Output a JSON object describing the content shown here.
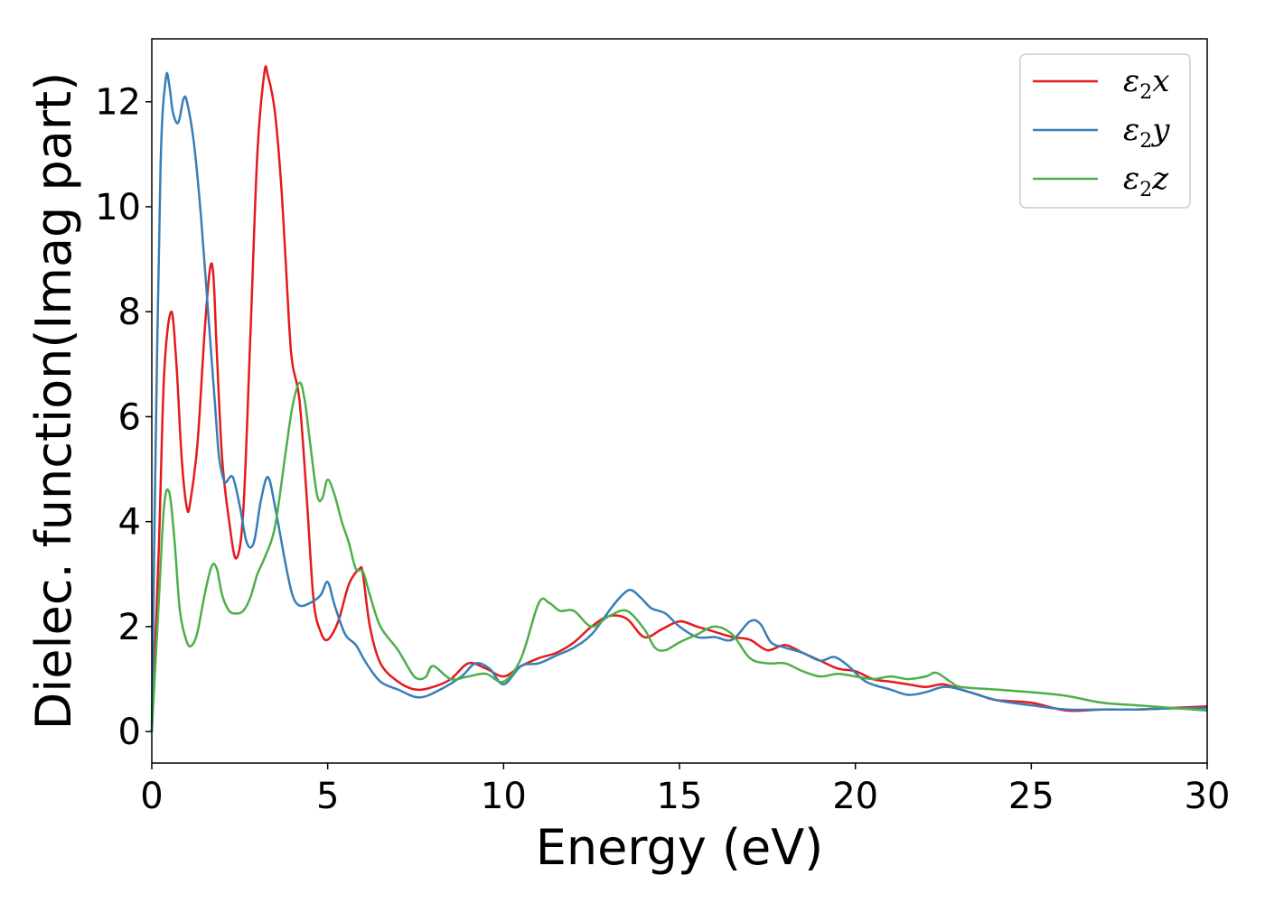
{
  "chart_data": {
    "type": "line",
    "title": "",
    "xlabel": "Energy (eV)",
    "ylabel": "Dielec. function(Imag part)",
    "xlim": [
      0,
      30
    ],
    "ylim": [
      -0.6,
      13.2
    ],
    "xticks": [
      0,
      5,
      10,
      15,
      20,
      25,
      30
    ],
    "yticks": [
      0,
      2,
      4,
      6,
      8,
      10,
      12
    ],
    "xtick_labels": [
      "0",
      "5",
      "10",
      "15",
      "20",
      "25",
      "30"
    ],
    "ytick_labels": [
      "0",
      "2",
      "4",
      "6",
      "8",
      "10",
      "12"
    ],
    "grid": false,
    "legend_position": "top-right",
    "series": [
      {
        "name": "ε2x",
        "label_main": "ε",
        "label_sub": "2",
        "label_tail": "x",
        "color": "#e41a1c",
        "x": [
          0,
          0.2,
          0.35,
          0.55,
          0.7,
          0.85,
          1.0,
          1.1,
          1.3,
          1.5,
          1.65,
          1.75,
          1.85,
          2.0,
          2.2,
          2.4,
          2.6,
          2.8,
          3.0,
          3.2,
          3.3,
          3.5,
          3.7,
          3.9,
          4.0,
          4.2,
          4.4,
          4.6,
          4.8,
          5.0,
          5.3,
          5.6,
          5.9,
          6.0,
          6.2,
          6.5,
          7.0,
          7.5,
          8.0,
          8.5,
          9.0,
          9.5,
          10.0,
          10.5,
          11.0,
          11.5,
          12.0,
          12.5,
          13.0,
          13.5,
          14.0,
          14.5,
          15.0,
          15.5,
          16.0,
          16.5,
          17.0,
          17.5,
          18.0,
          18.5,
          19.0,
          19.5,
          20.0,
          20.5,
          21.0,
          21.5,
          22.0,
          22.5,
          23.0,
          23.5,
          24.0,
          25.0,
          26.0,
          27.0,
          28.0,
          29.0,
          30.0
        ],
        "y": [
          0,
          3.5,
          6.8,
          8.0,
          7.0,
          5.2,
          4.25,
          4.4,
          5.5,
          7.6,
          8.8,
          8.7,
          7.2,
          5.2,
          4.0,
          3.3,
          4.2,
          7.5,
          11.0,
          12.55,
          12.5,
          11.8,
          10.2,
          7.8,
          7.0,
          6.3,
          4.5,
          2.5,
          1.9,
          1.75,
          2.1,
          2.8,
          3.1,
          3.0,
          2.0,
          1.3,
          0.95,
          0.8,
          0.85,
          1.0,
          1.3,
          1.2,
          1.05,
          1.25,
          1.4,
          1.5,
          1.7,
          2.0,
          2.2,
          2.15,
          1.8,
          1.95,
          2.1,
          2.0,
          1.9,
          1.8,
          1.75,
          1.55,
          1.65,
          1.5,
          1.35,
          1.2,
          1.15,
          1.0,
          0.95,
          0.9,
          0.85,
          0.9,
          0.8,
          0.7,
          0.6,
          0.55,
          0.4,
          0.42,
          0.42,
          0.45,
          0.48
        ]
      },
      {
        "name": "ε2y",
        "label_main": "ε",
        "label_sub": "2",
        "label_tail": "y",
        "color": "#377eb8",
        "x": [
          0,
          0.1,
          0.25,
          0.4,
          0.5,
          0.6,
          0.75,
          0.9,
          1.0,
          1.2,
          1.4,
          1.6,
          1.8,
          1.9,
          2.0,
          2.1,
          2.3,
          2.5,
          2.7,
          2.9,
          3.1,
          3.3,
          3.5,
          3.8,
          4.0,
          4.2,
          4.5,
          4.8,
          5.0,
          5.2,
          5.5,
          5.8,
          6.1,
          6.5,
          7.0,
          7.6,
          8.2,
          8.8,
          9.2,
          9.6,
          10.0,
          10.5,
          11.0,
          11.5,
          12.0,
          12.5,
          13.0,
          13.3,
          13.6,
          13.9,
          14.2,
          14.6,
          15.0,
          15.5,
          16.0,
          16.5,
          17.0,
          17.3,
          17.6,
          18.0,
          18.5,
          19.0,
          19.4,
          19.8,
          20.3,
          21.0,
          21.5,
          22.0,
          22.5,
          23.0,
          24.0,
          25.0,
          26.0,
          27.0,
          28.0,
          29.0,
          30.0
        ],
        "y": [
          0,
          5.0,
          10.8,
          12.45,
          12.3,
          11.8,
          11.6,
          12.05,
          12.0,
          11.2,
          9.8,
          8.0,
          6.2,
          5.3,
          4.9,
          4.75,
          4.85,
          4.3,
          3.6,
          3.6,
          4.4,
          4.85,
          4.3,
          3.2,
          2.6,
          2.4,
          2.45,
          2.6,
          2.85,
          2.4,
          1.85,
          1.65,
          1.3,
          0.95,
          0.8,
          0.65,
          0.8,
          1.05,
          1.3,
          1.2,
          0.9,
          1.25,
          1.3,
          1.45,
          1.6,
          1.85,
          2.3,
          2.55,
          2.7,
          2.55,
          2.35,
          2.25,
          2.0,
          1.8,
          1.8,
          1.75,
          2.1,
          2.05,
          1.7,
          1.6,
          1.5,
          1.35,
          1.42,
          1.25,
          0.95,
          0.8,
          0.7,
          0.75,
          0.85,
          0.8,
          0.6,
          0.5,
          0.42,
          0.42,
          0.42,
          0.44,
          0.45
        ]
      },
      {
        "name": "ε2z",
        "label_main": "ε",
        "label_sub": "2",
        "label_tail": "z",
        "color": "#4daf4a",
        "x": [
          0,
          0.2,
          0.35,
          0.5,
          0.65,
          0.8,
          1.0,
          1.15,
          1.3,
          1.5,
          1.7,
          1.85,
          2.0,
          2.2,
          2.4,
          2.6,
          2.8,
          3.0,
          3.2,
          3.5,
          3.8,
          4.0,
          4.2,
          4.35,
          4.5,
          4.7,
          4.85,
          5.0,
          5.2,
          5.4,
          5.6,
          5.8,
          6.0,
          6.2,
          6.5,
          7.0,
          7.4,
          7.6,
          7.8,
          8.0,
          8.5,
          9.0,
          9.5,
          10.0,
          10.5,
          11.0,
          11.3,
          11.6,
          12.0,
          12.5,
          13.0,
          13.5,
          14.0,
          14.3,
          14.6,
          15.0,
          15.5,
          16.0,
          16.5,
          17.0,
          17.5,
          18.0,
          18.5,
          19.0,
          19.5,
          20.0,
          20.5,
          21.0,
          21.5,
          22.0,
          22.3,
          22.7,
          23.0,
          24.0,
          25.0,
          26.0,
          27.0,
          28.0,
          29.0,
          30.0
        ],
        "y": [
          0,
          2.5,
          4.3,
          4.55,
          3.6,
          2.3,
          1.7,
          1.65,
          1.9,
          2.6,
          3.15,
          3.1,
          2.6,
          2.3,
          2.25,
          2.3,
          2.55,
          3.0,
          3.3,
          3.9,
          5.3,
          6.2,
          6.65,
          6.3,
          5.5,
          4.5,
          4.45,
          4.8,
          4.5,
          4.0,
          3.6,
          3.1,
          3.05,
          2.6,
          2.0,
          1.55,
          1.1,
          1.0,
          1.05,
          1.25,
          1.0,
          1.05,
          1.1,
          0.95,
          1.4,
          2.45,
          2.45,
          2.3,
          2.3,
          2.0,
          2.2,
          2.3,
          1.95,
          1.6,
          1.55,
          1.7,
          1.85,
          2.0,
          1.85,
          1.4,
          1.3,
          1.3,
          1.15,
          1.05,
          1.1,
          1.05,
          1.0,
          1.05,
          1.0,
          1.05,
          1.12,
          0.95,
          0.85,
          0.8,
          0.75,
          0.68,
          0.55,
          0.5,
          0.45,
          0.4
        ]
      }
    ]
  }
}
